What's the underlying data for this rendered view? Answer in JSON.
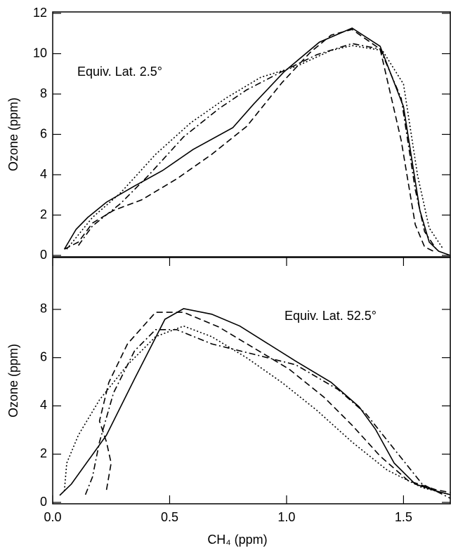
{
  "chart_data": [
    {
      "type": "line",
      "ylabel": "Ozone (ppm)",
      "annotation": "Equiv. Lat.  2.5°",
      "xlim": [
        0,
        1.7
      ],
      "ylim": [
        0,
        12
      ],
      "yticks": [
        0,
        2,
        4,
        6,
        8,
        10,
        12
      ],
      "series": [
        {
          "color": "#000000",
          "dash": "solid",
          "x": [
            0.05,
            0.1,
            0.15,
            0.23,
            0.35,
            0.47,
            0.6,
            0.77,
            0.86,
            0.99,
            1.14,
            1.28,
            1.4,
            1.5,
            1.57,
            1.61,
            1.65,
            1.7
          ],
          "values": [
            0.31,
            1.29,
            1.88,
            2.64,
            3.44,
            4.21,
            5.25,
            6.33,
            7.51,
            9.11,
            10.57,
            11.27,
            10.37,
            7.37,
            2.23,
            0.66,
            0.21,
            0
          ]
        },
        {
          "color": "#000000",
          "dash": "dashed",
          "x": [
            0.05,
            0.11,
            0.17,
            0.26,
            0.38,
            0.53,
            0.68,
            0.83,
            0.98,
            1.1,
            1.19,
            1.28,
            1.4,
            1.49,
            1.55,
            1.59,
            1.64
          ],
          "values": [
            0.31,
            0.66,
            1.6,
            2.23,
            2.75,
            3.79,
            5.01,
            6.4,
            8.56,
            10.05,
            10.92,
            11.2,
            10.23,
            5.7,
            1.53,
            0.42,
            0.14
          ]
        },
        {
          "color": "#000000",
          "dash": "dashdot",
          "x": [
            0.11,
            0.17,
            0.29,
            0.41,
            0.56,
            0.71,
            0.83,
            0.98,
            1.13,
            1.28,
            1.4,
            1.49,
            1.55,
            1.59,
            1.64
          ],
          "values": [
            0.49,
            1.46,
            2.57,
            3.97,
            5.88,
            7.27,
            8.21,
            9.11,
            9.95,
            10.5,
            10.23,
            7.79,
            3.27,
            1.18,
            0.31
          ]
        },
        {
          "color": "#000000",
          "dash": "dotted",
          "x": [
            0.06,
            0.17,
            0.29,
            0.44,
            0.59,
            0.74,
            0.89,
            1.04,
            1.19,
            1.28,
            1.41,
            1.5,
            1.56,
            1.61,
            1.67
          ],
          "values": [
            0.31,
            1.88,
            3.1,
            5.01,
            6.57,
            7.79,
            8.83,
            9.36,
            10.16,
            10.4,
            10.16,
            8.49,
            3.97,
            1.36,
            0.31
          ]
        }
      ]
    },
    {
      "type": "line",
      "ylabel": "Ozone (ppm)",
      "xlabel": "CH₄ (ppm)",
      "annotation": "Equiv. Lat.  52.5°",
      "xlim": [
        0,
        1.7
      ],
      "xticks": [
        {
          "value": 0,
          "label": "0.0"
        },
        0.5,
        {
          "value": 1,
          "label": "1.0"
        },
        1.5
      ],
      "ylim": [
        0,
        10.15
      ],
      "yticks": [
        0,
        2,
        4,
        6,
        8
      ],
      "series": [
        {
          "color": "#000000",
          "dash": "solid",
          "x": [
            0.03,
            0.08,
            0.23,
            0.35,
            0.48,
            0.56,
            0.68,
            0.8,
            0.92,
            1.04,
            1.19,
            1.31,
            1.38,
            1.46,
            1.55,
            1.64,
            1.7
          ],
          "values": [
            0.29,
            0.76,
            2.79,
            5.12,
            7.59,
            8.03,
            7.8,
            7.31,
            6.58,
            5.85,
            4.98,
            3.96,
            3.03,
            1.63,
            0.76,
            0.47,
            0.32
          ]
        },
        {
          "color": "#000000",
          "dash": "dashed",
          "x": [
            0.23,
            0.25,
            0.23,
            0.2,
            0.24,
            0.32,
            0.44,
            0.56,
            0.71,
            0.86,
            1.01,
            1.16,
            1.28,
            1.4,
            1.52,
            1.64,
            1.7
          ],
          "values": [
            0.52,
            1.63,
            2.5,
            3.37,
            4.97,
            6.57,
            7.88,
            7.88,
            7.27,
            6.4,
            5.53,
            4.36,
            3.2,
            1.92,
            0.9,
            0.52,
            0.41
          ]
        },
        {
          "color": "#000000",
          "dash": "dashdot",
          "x": [
            0.14,
            0.17,
            0.2,
            0.26,
            0.35,
            0.44,
            0.53,
            0.68,
            0.86,
            1.04,
            1.22,
            1.34,
            1.46,
            1.58,
            1.7
          ],
          "values": [
            0.32,
            1.05,
            2.5,
            4.54,
            6.28,
            7.16,
            7.16,
            6.57,
            6.14,
            5.7,
            4.68,
            3.67,
            2.21,
            0.76,
            0.17
          ]
        },
        {
          "color": "#000000",
          "dash": "dotted",
          "x": [
            0.05,
            0.06,
            0.11,
            0.2,
            0.32,
            0.44,
            0.56,
            0.68,
            0.83,
            0.98,
            1.13,
            1.28,
            1.43,
            1.58,
            1.7
          ],
          "values": [
            0.47,
            1.63,
            2.79,
            4.25,
            5.7,
            6.87,
            7.31,
            6.87,
            5.99,
            4.97,
            3.81,
            2.5,
            1.34,
            0.61,
            0.32
          ]
        }
      ]
    }
  ]
}
